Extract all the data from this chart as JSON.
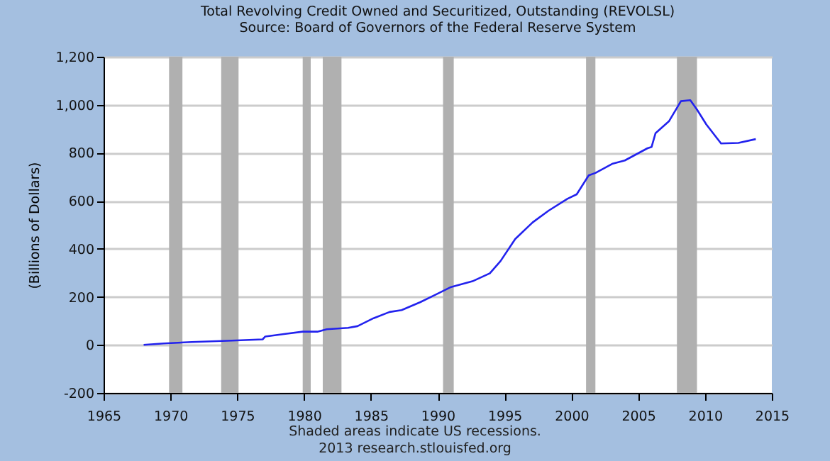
{
  "chart_data": {
    "type": "line",
    "title": "Total Revolving Credit Owned and Securitized, Outstanding (REVOLSL)",
    "subtitle": "Source: Board of Governors of the Federal Reserve System",
    "ylabel": "(Billions of Dollars)",
    "annotations": [
      "Shaded areas indicate US recessions.",
      "2013 research.stlouisfed.org"
    ],
    "x": [
      1968.0,
      1969.5,
      1971.6,
      1974.6,
      1976.9,
      1977.1,
      1978.5,
      1979.9,
      1981.0,
      1981.7,
      1983.3,
      1984.0,
      1985.2,
      1986.4,
      1987.3,
      1988.7,
      1989.8,
      1991.0,
      1992.6,
      1993.9,
      1994.7,
      1995.8,
      1997.1,
      1998.3,
      1999.7,
      2000.4,
      2001.3,
      2001.8,
      2003.1,
      2004.0,
      2005.7,
      2006.0,
      2006.3,
      2007.3,
      2008.2,
      2008.9,
      2009.4,
      2010.1,
      2011.2,
      2012.5,
      2013.8
    ],
    "series": [
      {
        "color": "#2222ee",
        "values": [
          0,
          6,
          12,
          18,
          23,
          35,
          45,
          55,
          55,
          65,
          71,
          78,
          111,
          137,
          145,
          178,
          208,
          241,
          265,
          298,
          349,
          441,
          510,
          559,
          608,
          627,
          706,
          716,
          755,
          768,
          819,
          824,
          882,
          931,
          1015,
          1019,
          980,
          918,
          839,
          841,
          857
        ]
      }
    ],
    "xlim": [
      1965,
      2015
    ],
    "xticks": [
      1965,
      1970,
      1975,
      1980,
      1985,
      1990,
      1995,
      2000,
      2005,
      2010,
      2015
    ],
    "ylim": [
      -200,
      1200
    ],
    "yticks": [
      -200,
      0,
      200,
      400,
      600,
      800,
      {
        "value": 1000,
        "label": "1,000"
      },
      {
        "value": 1200,
        "label": "1,200"
      }
    ],
    "grid": "y",
    "bands": [
      {
        "axis": "x",
        "from": 1969.9,
        "to": 1970.9,
        "color": "#b0b0b0"
      },
      {
        "axis": "x",
        "from": 1973.8,
        "to": 1975.1,
        "color": "#b0b0b0"
      },
      {
        "axis": "x",
        "from": 1979.9,
        "to": 1980.5,
        "color": "#b0b0b0"
      },
      {
        "axis": "x",
        "from": 1981.4,
        "to": 1982.8,
        "color": "#b0b0b0"
      },
      {
        "axis": "x",
        "from": 1990.4,
        "to": 1991.2,
        "color": "#b0b0b0"
      },
      {
        "axis": "x",
        "from": 2001.1,
        "to": 2001.8,
        "color": "#b0b0b0"
      },
      {
        "axis": "x",
        "from": 2007.9,
        "to": 2009.4,
        "color": "#b0b0b0"
      }
    ]
  }
}
